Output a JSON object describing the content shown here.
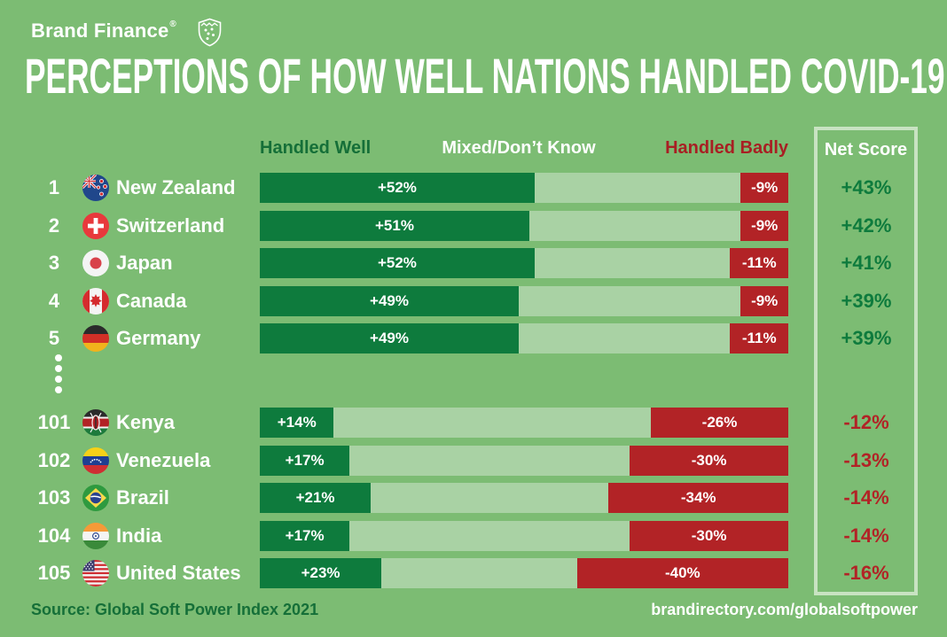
{
  "brand": {
    "name": "Brand Finance",
    "registered": "®"
  },
  "title": "PERCEPTIONS OF HOW WELL NATIONS HANDLED COVID-19",
  "columns": {
    "well": "Handled Well",
    "mixed": "Mixed/Don’t Know",
    "badly": "Handled Badly",
    "net": "Net Score"
  },
  "footer": {
    "source": "Source: Global Soft Power Index 2021",
    "link": "brandirectory.com/globalsoftpower"
  },
  "colors": {
    "background": "#7cbc73",
    "handled_well_bar": "#0e7b3d",
    "mixed_bar": "#a9d2a4",
    "handled_badly_bar": "#b22326",
    "well_text": "#156f38",
    "badly_text": "#a81f23",
    "net_box_border": "#c8e3c2",
    "white": "#ffffff"
  },
  "chart_data": {
    "type": "bar",
    "orientation": "horizontal-stacked",
    "title": "PERCEPTIONS OF HOW WELL NATIONS HANDLED COVID-19",
    "series_labels": [
      "Handled Well",
      "Mixed/Don’t Know",
      "Handled Badly"
    ],
    "unit": "%",
    "axis_range": [
      0,
      100
    ],
    "rows": [
      {
        "rank": "1",
        "country": "New Zealand",
        "well": 52,
        "well_label": "+52%",
        "mixed": 39,
        "badly": 9,
        "badly_label": "-9%",
        "net": 43,
        "net_label": "+43%"
      },
      {
        "rank": "2",
        "country": "Switzerland",
        "well": 51,
        "well_label": "+51%",
        "mixed": 40,
        "badly": 9,
        "badly_label": "-9%",
        "net": 42,
        "net_label": "+42%"
      },
      {
        "rank": "3",
        "country": "Japan",
        "well": 52,
        "well_label": "+52%",
        "mixed": 37,
        "badly": 11,
        "badly_label": "-11%",
        "net": 41,
        "net_label": "+41%"
      },
      {
        "rank": "4",
        "country": "Canada",
        "well": 49,
        "well_label": "+49%",
        "mixed": 42,
        "badly": 9,
        "badly_label": "-9%",
        "net": 39,
        "net_label": "+39%"
      },
      {
        "rank": "5",
        "country": "Germany",
        "well": 49,
        "well_label": "+49%",
        "mixed": 40,
        "badly": 11,
        "badly_label": "-11%",
        "net": 39,
        "net_label": "+39%"
      },
      {
        "rank": "101",
        "country": "Kenya",
        "well": 14,
        "well_label": "+14%",
        "mixed": 60,
        "badly": 26,
        "badly_label": "-26%",
        "net": -12,
        "net_label": "-12%"
      },
      {
        "rank": "102",
        "country": "Venezuela",
        "well": 17,
        "well_label": "+17%",
        "mixed": 53,
        "badly": 30,
        "badly_label": "-30%",
        "net": -13,
        "net_label": "-13%"
      },
      {
        "rank": "103",
        "country": "Brazil",
        "well": 21,
        "well_label": "+21%",
        "mixed": 45,
        "badly": 34,
        "badly_label": "-34%",
        "net": -14,
        "net_label": "-14%"
      },
      {
        "rank": "104",
        "country": "India",
        "well": 17,
        "well_label": "+17%",
        "mixed": 53,
        "badly": 30,
        "badly_label": "-30%",
        "net": -14,
        "net_label": "-14%"
      },
      {
        "rank": "105",
        "country": "United States",
        "well": 23,
        "well_label": "+23%",
        "mixed": 37,
        "badly": 40,
        "badly_label": "-40%",
        "net": -16,
        "net_label": "-16%"
      }
    ]
  }
}
